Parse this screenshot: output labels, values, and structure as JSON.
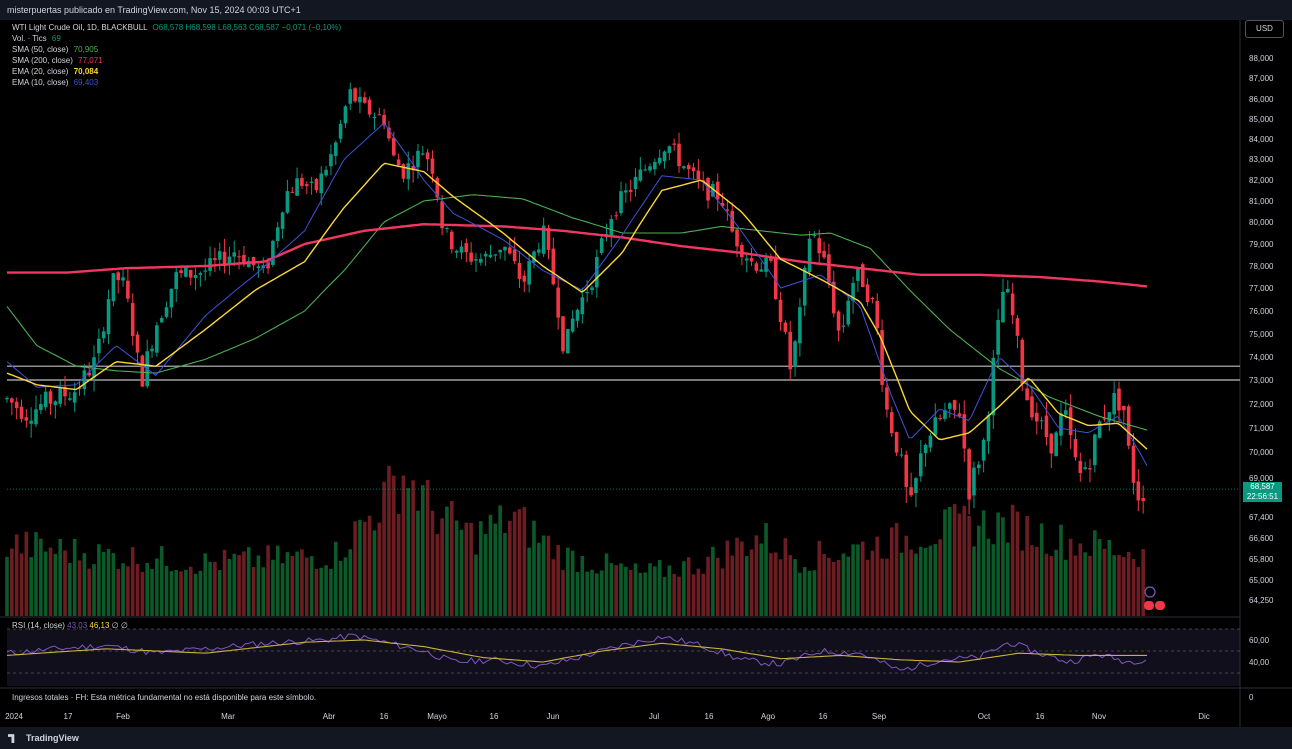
{
  "header": {
    "publisher": "misterpuertas publicado en TradingView.com, Nov 15, 2024 00:03 UTC+1"
  },
  "legend": {
    "symbol": "WTI Light Crude Oil, 1D, BLACKBULL",
    "ohlc": "O68,578 H68,598 L68,563 C68,587 −0,071 (−0,10%)",
    "vol_label": "Vol. · Tics",
    "vol_value": "69",
    "sma50_label": "SMA (50, close)",
    "sma50_value": "70,905",
    "sma200_label": "SMA (200, close)",
    "sma200_value": "77,071",
    "ema20_label": "EMA (20, close)",
    "ema20_value": "70,084",
    "ema10_label": "EMA (10, close)",
    "ema10_value": "69,403"
  },
  "currency_button": "USD",
  "last_price": {
    "value": "68,587",
    "countdown": "22:56:51"
  },
  "rsi": {
    "label": "RSI (14, close)",
    "value1": "43,03",
    "value2": "46,13",
    "extra": "∅ ∅"
  },
  "fundamental_note": "Ingresos totales · FH: Esta métrica fundamental no está disponible para este símbolo.",
  "fundamental_zero": "0",
  "footer": {
    "brand": "TradingView"
  },
  "colors": {
    "up": "#089981",
    "down": "#f23645",
    "sma50": "#4caf50",
    "sma200": "#f23662",
    "ema20": "#fdd835",
    "ema10": "#3f51d8",
    "rsi": "#7e57c2",
    "rsi_ma": "#c9b23a"
  },
  "chart_data": {
    "type": "candlestick",
    "y_ticks": [
      "88,000",
      "87,000",
      "86,000",
      "85,000",
      "84,000",
      "83,000",
      "82,000",
      "81,000",
      "80,000",
      "79,000",
      "78,000",
      "77,000",
      "76,000",
      "75,000",
      "74,000",
      "73,000",
      "72,000",
      "71,000",
      "70,000",
      "69,000",
      "67,400",
      "66,600",
      "65,800",
      "65,000",
      "64,250"
    ],
    "rsi_ticks": [
      "60,00",
      "40,00"
    ],
    "x_ticks": [
      "2024",
      "17",
      "Feb",
      "Mar",
      "Abr",
      "16",
      "Mayo",
      "16",
      "Jun",
      "Jul",
      "16",
      "Ago",
      "16",
      "Sep",
      "Oct",
      "16",
      "Nov",
      "Dic"
    ],
    "horizontal_levels": [
      73.6,
      73.0
    ],
    "sma200": [
      [
        0,
        77.7
      ],
      [
        60,
        77.7
      ],
      [
        120,
        77.9
      ],
      [
        200,
        78.0
      ],
      [
        260,
        78.2
      ],
      [
        300,
        79.0
      ],
      [
        360,
        79.6
      ],
      [
        420,
        79.9
      ],
      [
        500,
        79.8
      ],
      [
        560,
        79.6
      ],
      [
        620,
        79.3
      ],
      [
        680,
        78.9
      ],
      [
        740,
        78.6
      ],
      [
        800,
        78.2
      ],
      [
        860,
        77.9
      ],
      [
        920,
        77.6
      ],
      [
        980,
        77.6
      ],
      [
        1040,
        77.5
      ],
      [
        1100,
        77.3
      ],
      [
        1150,
        77.07
      ]
    ],
    "sma50": [
      [
        0,
        76.2
      ],
      [
        30,
        74.5
      ],
      [
        70,
        73.6
      ],
      [
        110,
        73.4
      ],
      [
        150,
        73.3
      ],
      [
        200,
        73.9
      ],
      [
        250,
        74.8
      ],
      [
        300,
        76.0
      ],
      [
        340,
        77.8
      ],
      [
        380,
        80.0
      ],
      [
        420,
        81.0
      ],
      [
        470,
        81.3
      ],
      [
        520,
        81.1
      ],
      [
        570,
        80.2
      ],
      [
        620,
        79.5
      ],
      [
        680,
        79.5
      ],
      [
        720,
        79.8
      ],
      [
        760,
        79.6
      ],
      [
        800,
        79.4
      ],
      [
        830,
        79.5
      ],
      [
        870,
        78.8
      ],
      [
        910,
        76.9
      ],
      [
        950,
        75.2
      ],
      [
        1000,
        73.5
      ],
      [
        1050,
        72.3
      ],
      [
        1100,
        71.5
      ],
      [
        1150,
        70.9
      ]
    ],
    "ema20": [
      [
        0,
        73.3
      ],
      [
        30,
        72.8
      ],
      [
        70,
        72.6
      ],
      [
        110,
        73.8
      ],
      [
        150,
        73.6
      ],
      [
        200,
        75.2
      ],
      [
        250,
        76.9
      ],
      [
        300,
        78.2
      ],
      [
        340,
        80.7
      ],
      [
        380,
        82.8
      ],
      [
        420,
        82.4
      ],
      [
        450,
        81.2
      ],
      [
        500,
        79.5
      ],
      [
        540,
        78.0
      ],
      [
        580,
        76.8
      ],
      [
        620,
        78.6
      ],
      [
        660,
        81.5
      ],
      [
        700,
        82.0
      ],
      [
        740,
        80.5
      ],
      [
        780,
        78.3
      ],
      [
        820,
        77.4
      ],
      [
        860,
        76.4
      ],
      [
        880,
        74.9
      ],
      [
        910,
        71.7
      ],
      [
        940,
        70.5
      ],
      [
        970,
        70.8
      ],
      [
        1000,
        71.9
      ],
      [
        1030,
        73.1
      ],
      [
        1060,
        71.6
      ],
      [
        1090,
        71.1
      ],
      [
        1120,
        71.2
      ],
      [
        1150,
        70.08
      ]
    ],
    "ema10": [
      [
        0,
        73.8
      ],
      [
        30,
        72.7
      ],
      [
        70,
        72.8
      ],
      [
        110,
        74.5
      ],
      [
        150,
        73.2
      ],
      [
        200,
        75.8
      ],
      [
        250,
        77.6
      ],
      [
        300,
        79.6
      ],
      [
        340,
        83.0
      ],
      [
        380,
        84.8
      ],
      [
        420,
        82.0
      ],
      [
        450,
        80.4
      ],
      [
        500,
        79.2
      ],
      [
        540,
        77.8
      ],
      [
        580,
        76.9
      ],
      [
        620,
        79.4
      ],
      [
        660,
        82.2
      ],
      [
        700,
        82.0
      ],
      [
        740,
        79.6
      ],
      [
        780,
        77.0
      ],
      [
        820,
        77.6
      ],
      [
        860,
        76.2
      ],
      [
        890,
        72.5
      ],
      [
        910,
        70.5
      ],
      [
        940,
        71.8
      ],
      [
        970,
        71.3
      ],
      [
        1000,
        74.0
      ],
      [
        1030,
        72.8
      ],
      [
        1060,
        71.0
      ],
      [
        1090,
        70.8
      ],
      [
        1120,
        71.5
      ],
      [
        1150,
        69.4
      ]
    ],
    "price_keypoints": [
      [
        0,
        72.2
      ],
      [
        20,
        71.6
      ],
      [
        40,
        72.1
      ],
      [
        70,
        72.6
      ],
      [
        90,
        73.9
      ],
      [
        105,
        77.2
      ],
      [
        115,
        77.5
      ],
      [
        125,
        75.7
      ],
      [
        135,
        72.9
      ],
      [
        150,
        75.4
      ],
      [
        170,
        77.5
      ],
      [
        200,
        77.8
      ],
      [
        230,
        78.7
      ],
      [
        260,
        77.6
      ],
      [
        280,
        81.3
      ],
      [
        295,
        82.0
      ],
      [
        310,
        81.4
      ],
      [
        330,
        83.5
      ],
      [
        345,
        86.3
      ],
      [
        360,
        85.5
      ],
      [
        380,
        85.0
      ],
      [
        390,
        83.0
      ],
      [
        400,
        82.4
      ],
      [
        420,
        83.5
      ],
      [
        430,
        82.5
      ],
      [
        440,
        79.5
      ],
      [
        460,
        78.5
      ],
      [
        480,
        78.3
      ],
      [
        500,
        79.0
      ],
      [
        520,
        77.2
      ],
      [
        540,
        79.6
      ],
      [
        555,
        76.3
      ],
      [
        562,
        74.2
      ],
      [
        570,
        75.6
      ],
      [
        590,
        77.5
      ],
      [
        610,
        80.5
      ],
      [
        630,
        81.7
      ],
      [
        650,
        83.0
      ],
      [
        665,
        83.8
      ],
      [
        680,
        82.8
      ],
      [
        700,
        81.6
      ],
      [
        720,
        81.2
      ],
      [
        730,
        79.6
      ],
      [
        750,
        78.2
      ],
      [
        770,
        77.9
      ],
      [
        780,
        75.8
      ],
      [
        790,
        73.4
      ],
      [
        800,
        76.0
      ],
      [
        810,
        79.8
      ],
      [
        825,
        78.0
      ],
      [
        840,
        74.7
      ],
      [
        850,
        77.2
      ],
      [
        860,
        77.6
      ],
      [
        875,
        76.0
      ],
      [
        885,
        72.0
      ],
      [
        900,
        69.8
      ],
      [
        910,
        67.7
      ],
      [
        925,
        70.5
      ],
      [
        945,
        71.6
      ],
      [
        960,
        71.7
      ],
      [
        970,
        68.5
      ],
      [
        985,
        70.5
      ],
      [
        995,
        74.0
      ],
      [
        1005,
        77.2
      ],
      [
        1015,
        75.5
      ],
      [
        1025,
        72.6
      ],
      [
        1040,
        71.2
      ],
      [
        1055,
        70.2
      ],
      [
        1065,
        71.8
      ],
      [
        1080,
        69.0
      ],
      [
        1092,
        69.8
      ],
      [
        1102,
        71.3
      ],
      [
        1115,
        72.2
      ],
      [
        1125,
        72.0
      ],
      [
        1132,
        69.5
      ],
      [
        1140,
        68.4
      ],
      [
        1150,
        68.59
      ]
    ],
    "volume_profile": [
      [
        0,
        0.38
      ],
      [
        100,
        0.32
      ],
      [
        200,
        0.28
      ],
      [
        330,
        0.32
      ],
      [
        370,
        0.55
      ],
      [
        400,
        0.75
      ],
      [
        430,
        0.55
      ],
      [
        470,
        0.42
      ],
      [
        510,
        0.52
      ],
      [
        560,
        0.32
      ],
      [
        640,
        0.22
      ],
      [
        700,
        0.28
      ],
      [
        760,
        0.42
      ],
      [
        800,
        0.3
      ],
      [
        860,
        0.36
      ],
      [
        900,
        0.4
      ],
      [
        960,
        0.48
      ],
      [
        1010,
        0.48
      ],
      [
        1060,
        0.4
      ],
      [
        1110,
        0.36
      ],
      [
        1150,
        0.32
      ]
    ],
    "rsi_series_keypoints": [
      [
        0,
        48
      ],
      [
        50,
        52
      ],
      [
        100,
        55
      ],
      [
        150,
        48
      ],
      [
        200,
        52
      ],
      [
        260,
        57
      ],
      [
        320,
        60
      ],
      [
        350,
        64
      ],
      [
        380,
        58
      ],
      [
        420,
        50
      ],
      [
        450,
        40
      ],
      [
        490,
        42
      ],
      [
        540,
        36
      ],
      [
        580,
        45
      ],
      [
        620,
        55
      ],
      [
        660,
        63
      ],
      [
        700,
        55
      ],
      [
        740,
        42
      ],
      [
        780,
        38
      ],
      [
        820,
        50
      ],
      [
        860,
        48
      ],
      [
        900,
        32
      ],
      [
        940,
        42
      ],
      [
        980,
        44
      ],
      [
        1010,
        58
      ],
      [
        1040,
        48
      ],
      [
        1070,
        40
      ],
      [
        1100,
        47
      ],
      [
        1130,
        40
      ],
      [
        1150,
        43
      ]
    ],
    "rsi_ma_keypoints": [
      [
        0,
        46
      ],
      [
        100,
        52
      ],
      [
        200,
        48
      ],
      [
        300,
        58
      ],
      [
        360,
        60
      ],
      [
        420,
        54
      ],
      [
        480,
        44
      ],
      [
        540,
        40
      ],
      [
        600,
        50
      ],
      [
        660,
        57
      ],
      [
        720,
        52
      ],
      [
        780,
        43
      ],
      [
        840,
        46
      ],
      [
        900,
        42
      ],
      [
        960,
        40
      ],
      [
        1020,
        48
      ],
      [
        1080,
        46
      ],
      [
        1150,
        46
      ]
    ]
  }
}
